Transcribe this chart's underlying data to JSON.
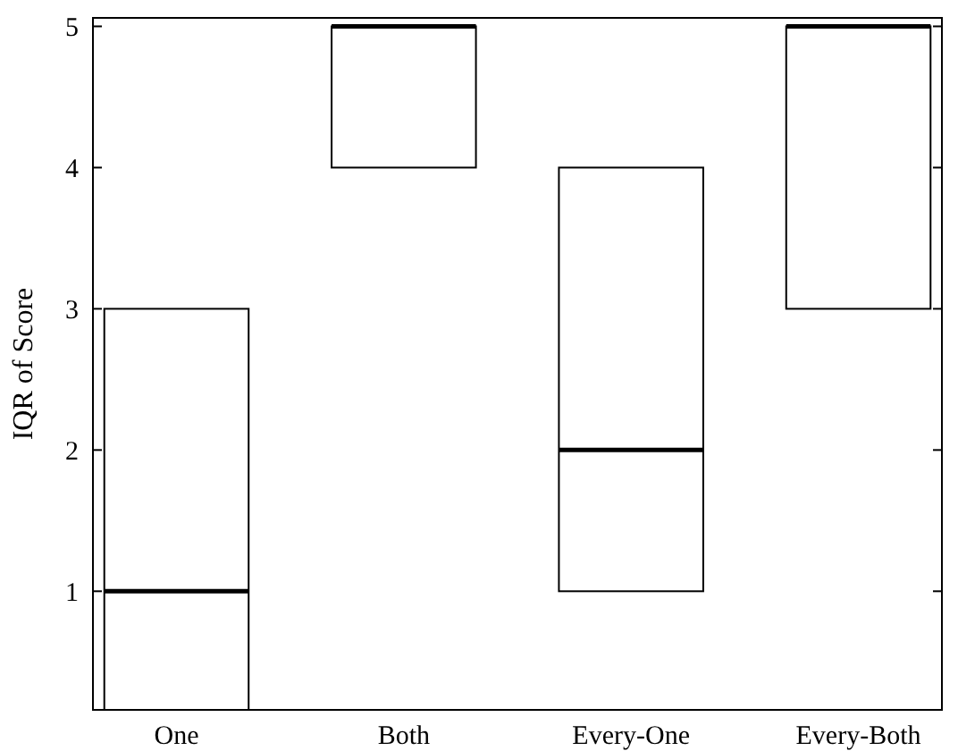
{
  "chart_data": {
    "type": "box",
    "ylabel": "IQR of Score",
    "categories": [
      "One",
      "Both",
      "Every-One",
      "Every-Both"
    ],
    "boxes": [
      {
        "q1": 0.16,
        "median": 1,
        "q3": 3
      },
      {
        "q1": 4,
        "median": 5,
        "q3": 5
      },
      {
        "q1": 1,
        "median": 2,
        "q3": 4
      },
      {
        "q1": 3,
        "median": 5,
        "q3": 5
      }
    ],
    "ylim": [
      0.16,
      5.06
    ],
    "yticks": [
      1,
      2,
      3,
      4,
      5
    ],
    "grid": false
  }
}
